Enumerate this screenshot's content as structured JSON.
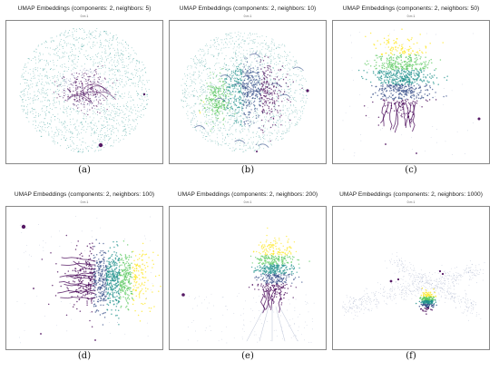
{
  "chart_data": [
    {
      "type": "scatter",
      "panel_label": "(a)",
      "title": "UMAP Embeddings (components: 2, neighbors: 5)",
      "subtitle": "0 m 1",
      "n_components": 2,
      "n_neighbors": 5,
      "structure": "diffuse-disk",
      "colormap": "viridis",
      "axes_visible": false
    },
    {
      "type": "scatter",
      "panel_label": "(b)",
      "title": "UMAP Embeddings (components: 2, neighbors: 10)",
      "subtitle": "0 m 1",
      "n_components": 2,
      "n_neighbors": 10,
      "structure": "disk-with-dense-core",
      "colormap": "viridis",
      "axes_visible": false
    },
    {
      "type": "scatter",
      "panel_label": "(c)",
      "title": "UMAP Embeddings (components: 2, neighbors: 50)",
      "subtitle": "0 m 1",
      "n_components": 2,
      "n_neighbors": 50,
      "structure": "compact-cluster-with-tendrils",
      "colormap": "viridis",
      "axes_visible": false
    },
    {
      "type": "scatter",
      "panel_label": "(d)",
      "title": "UMAP Embeddings (components: 2, neighbors: 100)",
      "subtitle": "0 m 1",
      "n_components": 2,
      "n_neighbors": 100,
      "structure": "horizontal-cluster-with-tendrils",
      "colormap": "viridis",
      "axes_visible": false
    },
    {
      "type": "scatter",
      "panel_label": "(e)",
      "title": "UMAP Embeddings (components: 2, neighbors: 200)",
      "subtitle": "0 m 1",
      "n_components": 2,
      "n_neighbors": 200,
      "structure": "narrow-cluster-with-long-tendrils",
      "colormap": "viridis",
      "axes_visible": false
    },
    {
      "type": "scatter",
      "panel_label": "(f)",
      "title": "UMAP Embeddings (components: 2, neighbors: 1000)",
      "subtitle": "0 m 1",
      "n_components": 2,
      "n_neighbors": 1000,
      "structure": "small-cluster-with-diagonal-bands",
      "colormap": "viridis",
      "axes_visible": false
    }
  ],
  "colors": {
    "dark_purple": "#440154",
    "indigo": "#3b528b",
    "teal": "#21918c",
    "green": "#5ec962",
    "yellow": "#fde725",
    "frame": "#888888"
  }
}
